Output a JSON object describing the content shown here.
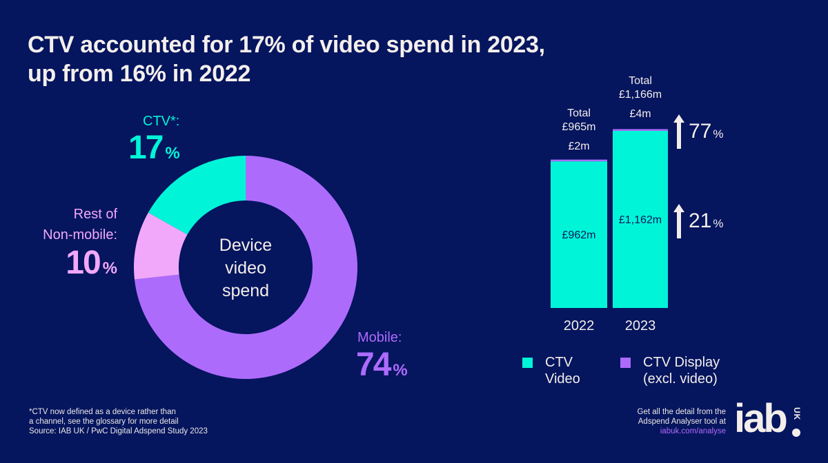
{
  "title": {
    "line1": "CTV accounted for 17% of video spend in 2023,",
    "line2": "up from 16% in 2022"
  },
  "colors": {
    "background": "#05155e",
    "ctv": "#00f5d8",
    "rest_non_mobile": "#f2a8fa",
    "mobile": "#ad6bfc",
    "text": "#f3eeea"
  },
  "chart_data": [
    {
      "type": "pie",
      "variant": "donut",
      "title": "Device video spend",
      "center_label": [
        "Device",
        "video",
        "spend"
      ],
      "unit": "%",
      "slices": [
        {
          "name": "Mobile",
          "label": "Mobile:",
          "value": 74,
          "color": "#ad6bfc"
        },
        {
          "name": "Rest of Non-mobile",
          "label_lines": [
            "Rest of",
            "Non-mobile:"
          ],
          "value": 10,
          "color": "#f2a8fa"
        },
        {
          "name": "CTV*",
          "label": "CTV*:",
          "value": 17,
          "color": "#00f5d8"
        }
      ],
      "start_angle_deg": 0,
      "direction": "clockwise"
    },
    {
      "type": "bar",
      "stacked": true,
      "categories": [
        "2022",
        "2023"
      ],
      "unit": "£m",
      "series": [
        {
          "name": "CTV Video",
          "legend_lines": [
            "CTV",
            "Video"
          ],
          "values": [
            962,
            1162
          ],
          "labels": [
            "£962m",
            "£1,162m"
          ],
          "color": "#00f5d8"
        },
        {
          "name": "CTV Display (excl. video)",
          "legend_lines": [
            "CTV Display",
            "(excl. video)"
          ],
          "values": [
            2,
            4
          ],
          "labels": [
            "£2m",
            "£4m"
          ],
          "color": "#ad6bfc"
        }
      ],
      "totals": {
        "label": "Total",
        "values": [
          965,
          1166
        ],
        "labels": [
          "£965m",
          "£1,166m"
        ]
      },
      "growth": [
        {
          "series": "CTV Display (excl. video)",
          "value": "77",
          "unit": "%",
          "direction": "up"
        },
        {
          "series": "CTV Video",
          "value": "21",
          "unit": "%",
          "direction": "up"
        }
      ],
      "ylim": [
        0,
        1166
      ],
      "grid": false,
      "legend": "bottom"
    }
  ],
  "donut_labels": {
    "ctv": {
      "label": "CTV*:",
      "value": "17",
      "unit": "%"
    },
    "rest": {
      "label1": "Rest of",
      "label2": "Non-mobile:",
      "value": "10",
      "unit": "%"
    },
    "mobile": {
      "label": "Mobile:",
      "value": "74",
      "unit": "%"
    }
  },
  "footer": {
    "note1": "*CTV now defined as a device rather than",
    "note2": "a channel, see the glossary for more detail",
    "source": "Source: IAB UK / PwC Digital Adspend Study 2023",
    "cta1": "Get all the detail from the",
    "cta2": "Adspend Analyser tool at",
    "link": "iabuk.com/analyse",
    "logo_text": "iab",
    "logo_sub": "UK"
  }
}
